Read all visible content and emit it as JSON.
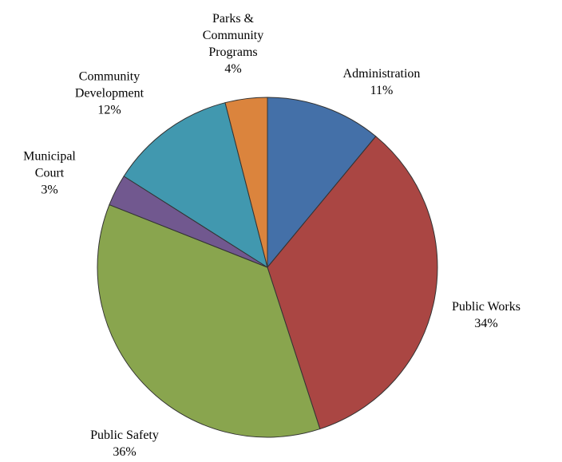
{
  "chart_data": {
    "type": "pie",
    "categories": [
      "Administration",
      "Public Works",
      "Public Safety",
      "Municipal Court",
      "Community Development",
      "Parks & Community Programs"
    ],
    "values": [
      11,
      34,
      36,
      3,
      12,
      4
    ],
    "value_labels": [
      "11%",
      "34%",
      "36%",
      "3%",
      "12%",
      "4%"
    ],
    "colors": [
      "#4470a8",
      "#aa4643",
      "#89a54e",
      "#71588f",
      "#4198af",
      "#db843d"
    ]
  }
}
